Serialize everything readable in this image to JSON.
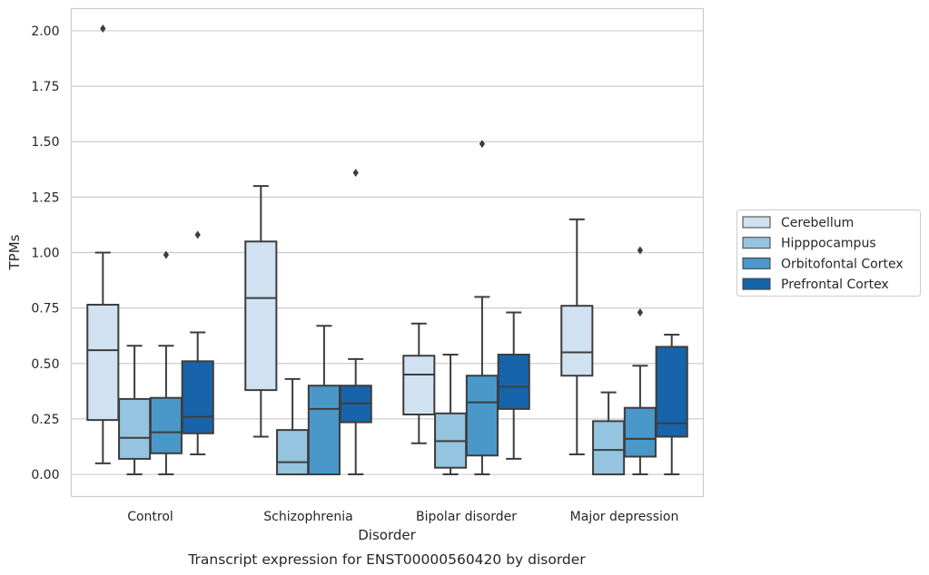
{
  "chart_data": {
    "type": "box",
    "xlabel": "Disorder",
    "ylabel": "TPMs",
    "caption": "Transcript expression for ENST00000560420 by disorder",
    "ylim": [
      -0.1,
      2.1
    ],
    "yticks": [
      "0.00",
      "0.25",
      "0.50",
      "0.75",
      "1.00",
      "1.25",
      "1.50",
      "1.75",
      "2.00"
    ],
    "grid": "horizontal",
    "legend_position": "right",
    "categories": [
      "Control",
      "Schizophrenia",
      "Bipolar disorder",
      "Major depression"
    ],
    "series": [
      {
        "name": "Cerebellum",
        "color": "#d0e1f2",
        "boxes": [
          {
            "whislo": 0.05,
            "q1": 0.245,
            "med": 0.56,
            "q3": 0.765,
            "whishi": 1.0,
            "fliers": [
              2.01
            ]
          },
          {
            "whislo": 0.17,
            "q1": 0.38,
            "med": 0.795,
            "q3": 1.05,
            "whishi": 1.3,
            "fliers": []
          },
          {
            "whislo": 0.14,
            "q1": 0.27,
            "med": 0.45,
            "q3": 0.535,
            "whishi": 0.68,
            "fliers": []
          },
          {
            "whislo": 0.09,
            "q1": 0.445,
            "med": 0.55,
            "q3": 0.76,
            "whishi": 1.15,
            "fliers": []
          }
        ]
      },
      {
        "name": "Hipppocampus",
        "color": "#94c4df",
        "boxes": [
          {
            "whislo": 0.0,
            "q1": 0.07,
            "med": 0.165,
            "q3": 0.34,
            "whishi": 0.58,
            "fliers": []
          },
          {
            "whislo": 0.0,
            "q1": 0.0,
            "med": 0.055,
            "q3": 0.2,
            "whishi": 0.43,
            "fliers": []
          },
          {
            "whislo": 0.0,
            "q1": 0.03,
            "med": 0.15,
            "q3": 0.275,
            "whishi": 0.54,
            "fliers": []
          },
          {
            "whislo": 0.0,
            "q1": 0.0,
            "med": 0.11,
            "q3": 0.24,
            "whishi": 0.37,
            "fliers": []
          }
        ]
      },
      {
        "name": "Orbitofontal Cortex",
        "color": "#4a98c9",
        "boxes": [
          {
            "whislo": 0.0,
            "q1": 0.095,
            "med": 0.19,
            "q3": 0.345,
            "whishi": 0.58,
            "fliers": [
              0.99
            ]
          },
          {
            "whislo": 0.0,
            "q1": 0.0,
            "med": 0.295,
            "q3": 0.4,
            "whishi": 0.67,
            "fliers": []
          },
          {
            "whislo": 0.0,
            "q1": 0.085,
            "med": 0.325,
            "q3": 0.445,
            "whishi": 0.8,
            "fliers": [
              1.49
            ]
          },
          {
            "whislo": 0.0,
            "q1": 0.08,
            "med": 0.16,
            "q3": 0.3,
            "whishi": 0.49,
            "fliers": [
              0.73,
              1.01
            ]
          }
        ]
      },
      {
        "name": "Prefrontal Cortex",
        "color": "#1764ab",
        "boxes": [
          {
            "whislo": 0.09,
            "q1": 0.185,
            "med": 0.26,
            "q3": 0.51,
            "whishi": 0.64,
            "fliers": [
              1.08
            ]
          },
          {
            "whislo": 0.0,
            "q1": 0.235,
            "med": 0.32,
            "q3": 0.4,
            "whishi": 0.52,
            "fliers": [
              1.36
            ]
          },
          {
            "whislo": 0.07,
            "q1": 0.295,
            "med": 0.395,
            "q3": 0.54,
            "whishi": 0.73,
            "fliers": []
          },
          {
            "whislo": 0.0,
            "q1": 0.17,
            "med": 0.23,
            "q3": 0.575,
            "whishi": 0.63,
            "fliers": []
          }
        ]
      }
    ]
  }
}
